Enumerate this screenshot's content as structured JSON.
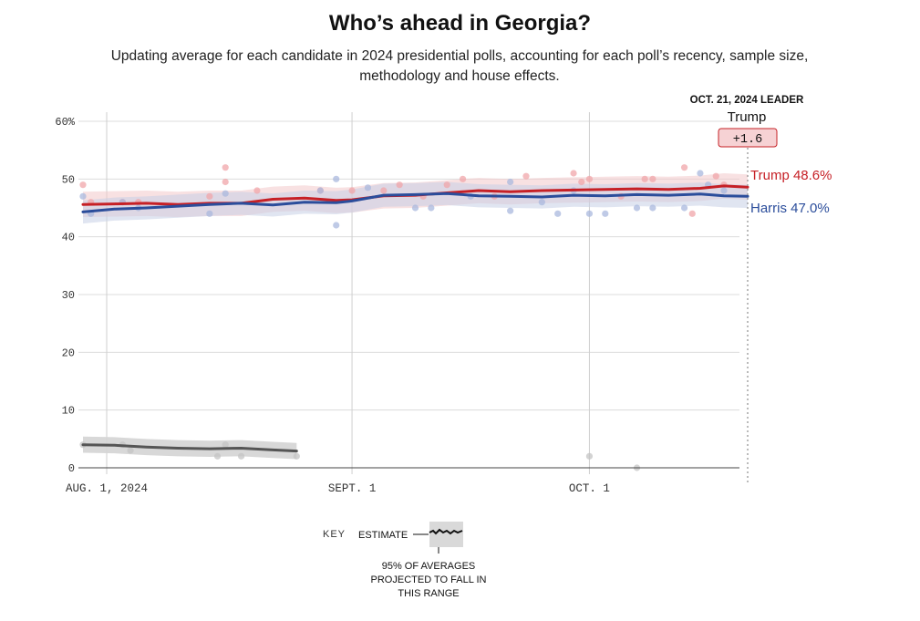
{
  "title": "Who’s ahead in Georgia?",
  "subtitle": "Updating average for each candidate in 2024 presidential polls, accounting for each poll’s recency, sample size, methodology and house effects.",
  "leader_box": {
    "heading": "OCT. 21, 2024 LEADER",
    "name": "Trump",
    "margin": "+1.6"
  },
  "end_labels": {
    "trump": "Trump 48.6%",
    "harris": "Harris 47.0%"
  },
  "key": {
    "label": "KEY",
    "estimate": "ESTIMATE",
    "range_line1": "95% OF AVERAGES",
    "range_line2": "PROJECTED TO FALL IN",
    "range_line3": "THIS RANGE"
  },
  "colors": {
    "trump": "#c62026",
    "harris": "#2b4d9b",
    "other": "#555555"
  },
  "chart_data": {
    "type": "line",
    "x_ticks": [
      "AUG. 1, 2024",
      "SEPT. 1",
      "OCT. 1"
    ],
    "x_tick_dates": [
      "2024-08-01",
      "2024-09-01",
      "2024-10-01"
    ],
    "y_ticks": [
      "0",
      "10",
      "20",
      "30",
      "40",
      "50",
      "60%"
    ],
    "ylim": [
      0,
      60
    ],
    "xlim": [
      "2024-07-29",
      "2024-10-21"
    ],
    "grid": true,
    "series": [
      {
        "name": "Trump",
        "color": "#c62026",
        "x": [
          "2024-07-29",
          "2024-08-02",
          "2024-08-06",
          "2024-08-10",
          "2024-08-14",
          "2024-08-18",
          "2024-08-22",
          "2024-08-26",
          "2024-08-30",
          "2024-09-01",
          "2024-09-05",
          "2024-09-09",
          "2024-09-13",
          "2024-09-17",
          "2024-09-21",
          "2024-09-25",
          "2024-09-29",
          "2024-10-03",
          "2024-10-07",
          "2024-10-11",
          "2024-10-15",
          "2024-10-18",
          "2024-10-21"
        ],
        "y": [
          45.6,
          45.7,
          45.8,
          45.6,
          45.8,
          45.8,
          46.5,
          46.7,
          46.3,
          46.4,
          47.1,
          47.2,
          47.6,
          48.0,
          47.8,
          48.0,
          48.1,
          48.2,
          48.3,
          48.2,
          48.4,
          48.8,
          48.6
        ]
      },
      {
        "name": "Harris",
        "color": "#2b4d9b",
        "x": [
          "2024-07-29",
          "2024-08-02",
          "2024-08-06",
          "2024-08-10",
          "2024-08-14",
          "2024-08-18",
          "2024-08-22",
          "2024-08-26",
          "2024-08-30",
          "2024-09-01",
          "2024-09-05",
          "2024-09-09",
          "2024-09-13",
          "2024-09-17",
          "2024-09-21",
          "2024-09-25",
          "2024-09-29",
          "2024-10-03",
          "2024-10-07",
          "2024-10-11",
          "2024-10-15",
          "2024-10-18",
          "2024-10-21"
        ],
        "y": [
          44.3,
          44.8,
          45.0,
          45.3,
          45.6,
          45.8,
          45.5,
          46.0,
          45.9,
          46.2,
          47.2,
          47.3,
          47.5,
          47.1,
          47.0,
          46.9,
          47.2,
          47.1,
          47.3,
          47.2,
          47.4,
          47.1,
          47.0
        ]
      },
      {
        "name": "Other",
        "color": "#555555",
        "x": [
          "2024-07-29",
          "2024-08-02",
          "2024-08-06",
          "2024-08-10",
          "2024-08-14",
          "2024-08-18",
          "2024-08-22",
          "2024-08-25"
        ],
        "y": [
          4.0,
          3.9,
          3.6,
          3.4,
          3.3,
          3.4,
          3.1,
          2.9
        ]
      }
    ],
    "polls": {
      "trump": [
        [
          "2024-07-29",
          49.0
        ],
        [
          "2024-07-30",
          46.0
        ],
        [
          "2024-08-03",
          46.0
        ],
        [
          "2024-08-05",
          46.0
        ],
        [
          "2024-08-14",
          47.0
        ],
        [
          "2024-08-16",
          52.0
        ],
        [
          "2024-08-16",
          49.5
        ],
        [
          "2024-08-20",
          48.0
        ],
        [
          "2024-08-28",
          48.0
        ],
        [
          "2024-09-01",
          48.0
        ],
        [
          "2024-09-05",
          48.0
        ],
        [
          "2024-09-07",
          49.0
        ],
        [
          "2024-09-10",
          47.0
        ],
        [
          "2024-09-13",
          49.0
        ],
        [
          "2024-09-15",
          50.0
        ],
        [
          "2024-09-19",
          47.0
        ],
        [
          "2024-09-23",
          50.5
        ],
        [
          "2024-09-29",
          51.0
        ],
        [
          "2024-09-30",
          49.5
        ],
        [
          "2024-10-01",
          50.0
        ],
        [
          "2024-10-05",
          47.0
        ],
        [
          "2024-10-08",
          50.0
        ],
        [
          "2024-10-09",
          50.0
        ],
        [
          "2024-10-13",
          52.0
        ],
        [
          "2024-10-14",
          44.0
        ],
        [
          "2024-10-17",
          50.5
        ],
        [
          "2024-10-18",
          49.0
        ]
      ],
      "harris": [
        [
          "2024-07-29",
          47.0
        ],
        [
          "2024-07-30",
          44.0
        ],
        [
          "2024-08-03",
          46.0
        ],
        [
          "2024-08-05",
          45.0
        ],
        [
          "2024-08-14",
          44.0
        ],
        [
          "2024-08-16",
          47.5
        ],
        [
          "2024-08-28",
          48.0
        ],
        [
          "2024-08-30",
          50.0
        ],
        [
          "2024-08-30",
          42.0
        ],
        [
          "2024-09-03",
          48.5
        ],
        [
          "2024-09-09",
          45.0
        ],
        [
          "2024-09-11",
          45.0
        ],
        [
          "2024-09-16",
          47.0
        ],
        [
          "2024-09-21",
          44.5
        ],
        [
          "2024-09-21",
          49.5
        ],
        [
          "2024-09-25",
          46.0
        ],
        [
          "2024-09-27",
          44.0
        ],
        [
          "2024-09-29",
          48.0
        ],
        [
          "2024-10-01",
          44.0
        ],
        [
          "2024-10-03",
          44.0
        ],
        [
          "2024-10-07",
          45.0
        ],
        [
          "2024-10-09",
          45.0
        ],
        [
          "2024-10-13",
          45.0
        ],
        [
          "2024-10-15",
          51.0
        ],
        [
          "2024-10-16",
          49.0
        ],
        [
          "2024-10-18",
          48.0
        ]
      ],
      "other": [
        [
          "2024-07-29",
          4.0
        ],
        [
          "2024-08-03",
          4.0
        ],
        [
          "2024-08-04",
          3.0
        ],
        [
          "2024-08-15",
          2.0
        ],
        [
          "2024-08-16",
          4.0
        ],
        [
          "2024-08-18",
          2.0
        ],
        [
          "2024-08-25",
          2.0
        ],
        [
          "2024-10-01",
          2.0
        ],
        [
          "2024-10-07",
          0.0
        ]
      ]
    }
  }
}
